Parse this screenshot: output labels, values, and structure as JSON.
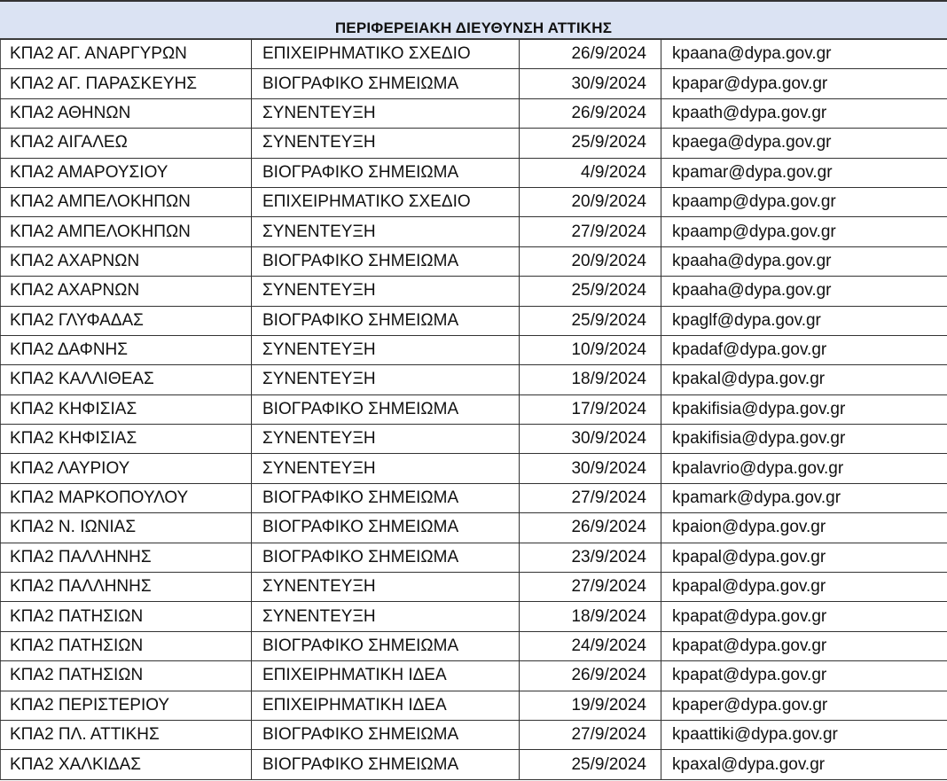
{
  "title": "ΠΕΡΙΦΕΡΕΙΑΚΗ ΔΙΕΥΘΥΝΣΗ ΑΤΤΙΚΗΣ",
  "rows": [
    [
      "ΚΠΑ2 ΑΓ. ΑΝΑΡΓΥΡΩΝ",
      "ΕΠΙΧΕΙΡΗΜΑΤΙΚΟ ΣΧΕΔΙΟ",
      "26/9/2024",
      "kpaana@dypa.gov.gr"
    ],
    [
      "ΚΠΑ2 ΑΓ. ΠΑΡΑΣΚΕΥΗΣ",
      "ΒΙΟΓΡΑΦΙΚΟ ΣΗΜΕΙΩΜΑ",
      "30/9/2024",
      "kpapar@dypa.gov.gr"
    ],
    [
      "ΚΠΑ2 ΑΘΗΝΩΝ",
      "ΣΥΝΕΝΤΕΥΞΗ",
      "26/9/2024",
      "kpaath@dypa.gov.gr"
    ],
    [
      "ΚΠΑ2 ΑΙΓΑΛΕΩ",
      "ΣΥΝΕΝΤΕΥΞΗ",
      "25/9/2024",
      "kpaega@dypa.gov.gr"
    ],
    [
      "ΚΠΑ2 ΑΜΑΡΟΥΣΙΟΥ",
      "ΒΙΟΓΡΑΦΙΚΟ ΣΗΜΕΙΩΜΑ",
      "4/9/2024",
      "kpamar@dypa.gov.gr"
    ],
    [
      "ΚΠΑ2 ΑΜΠΕΛΟΚΗΠΩΝ",
      "ΕΠΙΧΕΙΡΗΜΑΤΙΚΟ ΣΧΕΔΙΟ",
      "20/9/2024",
      "kpaamp@dypa.gov.gr"
    ],
    [
      "ΚΠΑ2 ΑΜΠΕΛΟΚΗΠΩΝ",
      "ΣΥΝΕΝΤΕΥΞΗ",
      "27/9/2024",
      "kpaamp@dypa.gov.gr"
    ],
    [
      "ΚΠΑ2 ΑΧΑΡΝΩΝ",
      "ΒΙΟΓΡΑΦΙΚΟ ΣΗΜΕΙΩΜΑ",
      "20/9/2024",
      "kpaaha@dypa.gov.gr"
    ],
    [
      "ΚΠΑ2 ΑΧΑΡΝΩΝ",
      "ΣΥΝΕΝΤΕΥΞΗ",
      "25/9/2024",
      "kpaaha@dypa.gov.gr"
    ],
    [
      "ΚΠΑ2 ΓΛΥΦΑΔΑΣ",
      "ΒΙΟΓΡΑΦΙΚΟ ΣΗΜΕΙΩΜΑ",
      "25/9/2024",
      "kpaglf@dypa.gov.gr"
    ],
    [
      "ΚΠΑ2 ΔΑΦΝΗΣ",
      "ΣΥΝΕΝΤΕΥΞΗ",
      "10/9/2024",
      "kpadaf@dypa.gov.gr"
    ],
    [
      "ΚΠΑ2 ΚΑΛΛΙΘΕΑΣ",
      "ΣΥΝΕΝΤΕΥΞΗ",
      "18/9/2024",
      "kpakal@dypa.gov.gr"
    ],
    [
      "ΚΠΑ2 ΚΗΦΙΣΙΑΣ",
      "ΒΙΟΓΡΑΦΙΚΟ ΣΗΜΕΙΩΜΑ",
      "17/9/2024",
      "kpakifisia@dypa.gov.gr"
    ],
    [
      "ΚΠΑ2 ΚΗΦΙΣΙΑΣ",
      "ΣΥΝΕΝΤΕΥΞΗ",
      "30/9/2024",
      "kpakifisia@dypa.gov.gr"
    ],
    [
      "ΚΠΑ2 ΛΑΥΡΙΟΥ",
      "ΣΥΝΕΝΤΕΥΞΗ",
      "30/9/2024",
      "kpalavrio@dypa.gov.gr"
    ],
    [
      "ΚΠΑ2 ΜΑΡΚΟΠΟΥΛΟΥ",
      "ΒΙΟΓΡΑΦΙΚΟ ΣΗΜΕΙΩΜΑ",
      "27/9/2024",
      "kpamark@dypa.gov.gr"
    ],
    [
      "ΚΠΑ2 Ν. ΙΩΝΙΑΣ",
      "ΒΙΟΓΡΑΦΙΚΟ ΣΗΜΕΙΩΜΑ",
      "26/9/2024",
      "kpaion@dypa.gov.gr"
    ],
    [
      "ΚΠΑ2 ΠΑΛΛΗΝΗΣ",
      "ΒΙΟΓΡΑΦΙΚΟ ΣΗΜΕΙΩΜΑ",
      "23/9/2024",
      "kpapal@dypa.gov.gr"
    ],
    [
      "ΚΠΑ2 ΠΑΛΛΗΝΗΣ",
      "ΣΥΝΕΝΤΕΥΞΗ",
      "27/9/2024",
      "kpapal@dypa.gov.gr"
    ],
    [
      "ΚΠΑ2 ΠΑΤΗΣΙΩΝ",
      "ΣΥΝΕΝΤΕΥΞΗ",
      "18/9/2024",
      "kpapat@dypa.gov.gr"
    ],
    [
      "ΚΠΑ2 ΠΑΤΗΣΙΩΝ",
      "ΒΙΟΓΡΑΦΙΚΟ ΣΗΜΕΙΩΜΑ",
      "24/9/2024",
      "kpapat@dypa.gov.gr"
    ],
    [
      "ΚΠΑ2 ΠΑΤΗΣΙΩΝ",
      "ΕΠΙΧΕΙΡΗΜΑΤΙΚΗ ΙΔΕΑ",
      "26/9/2024",
      "kpapat@dypa.gov.gr"
    ],
    [
      "ΚΠΑ2 ΠΕΡΙΣΤΕΡΙΟΥ",
      "ΕΠΙΧΕΙΡΗΜΑΤΙΚΗ ΙΔΕΑ",
      "19/9/2024",
      "kpaper@dypa.gov.gr"
    ],
    [
      "ΚΠΑ2 ΠΛ. ΑΤΤΙΚΗΣ",
      "ΒΙΟΓΡΑΦΙΚΟ ΣΗΜΕΙΩΜΑ",
      "27/9/2024",
      "kpaattiki@dypa.gov.gr"
    ],
    [
      "ΚΠΑ2 ΧΑΛΚΙΔΑΣ",
      "ΒΙΟΓΡΑΦΙΚΟ ΣΗΜΕΙΩΜΑ",
      "25/9/2024",
      "kpaxal@dypa.gov.gr"
    ]
  ]
}
